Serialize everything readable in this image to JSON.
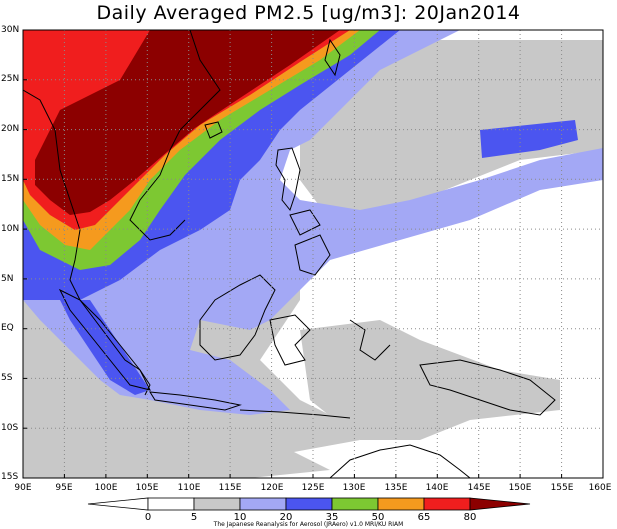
{
  "title": "Daily Averaged PM2.5 [ug/m3]: 20Jan2014",
  "map": {
    "lat_labels": [
      "30N",
      "25N",
      "20N",
      "15N",
      "10N",
      "5N",
      "EQ",
      "5S",
      "10S",
      "15S"
    ],
    "lon_labels": [
      "90E",
      "95E",
      "100E",
      "105E",
      "110E",
      "115E",
      "120E",
      "125E",
      "130E",
      "135E",
      "140E",
      "145E",
      "150E",
      "155E",
      "160E"
    ],
    "lat_range": [
      -15,
      30
    ],
    "lon_range": [
      90,
      160
    ],
    "grid": "dotted"
  },
  "colorbar": {
    "levels": [
      "0",
      "5",
      "10",
      "20",
      "35",
      "50",
      "65",
      "80"
    ],
    "colors": {
      "lt5": "#ffffff",
      "5to10": "#ffffff",
      "10to20": "#c8c8c8",
      "20to35": "#a3a8f5",
      "35to50": "#4b55f0",
      "50to65": "#7dc832",
      "65to80": "#f59a1e",
      "80to100": "#f01e1e",
      "gt100": "#8c0000"
    }
  },
  "credit": "The Japanese Reanalysis for Aerosol (JRAero) v1.0 MRI/KU RIAM"
}
